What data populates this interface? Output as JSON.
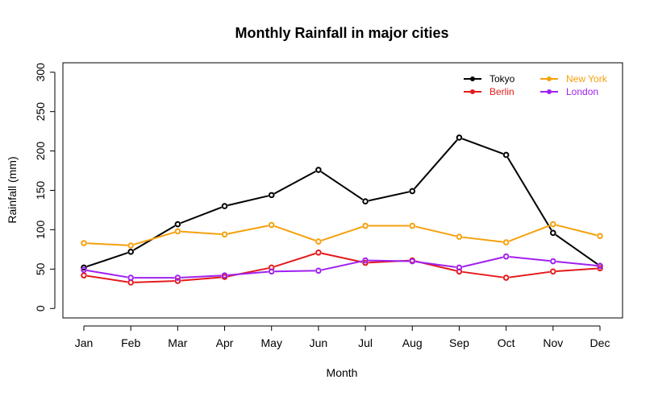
{
  "chart_data": {
    "type": "line",
    "title": "Monthly Rainfall in major cities",
    "xlabel": "Month",
    "ylabel": "Rainfall (mm)",
    "categories": [
      "Jan",
      "Feb",
      "Mar",
      "Apr",
      "May",
      "Jun",
      "Jul",
      "Aug",
      "Sep",
      "Oct",
      "Nov",
      "Dec"
    ],
    "ylim": [
      -12,
      312
    ],
    "yticks": [
      0,
      50,
      100,
      150,
      200,
      250,
      300
    ],
    "grid": false,
    "legend_position": "top-right",
    "series": [
      {
        "name": "Tokyo",
        "color": "#000000",
        "values": [
          52,
          72,
          107,
          130,
          144,
          176,
          136,
          149,
          217,
          195,
          96,
          54
        ]
      },
      {
        "name": "Berlin",
        "color": "#e41a1c",
        "values": [
          42,
          33,
          35,
          40,
          52,
          71,
          58,
          61,
          47,
          39,
          47,
          51
        ]
      },
      {
        "name": "New York",
        "color": "#f5a00d",
        "values": [
          83,
          80,
          98,
          94,
          106,
          85,
          105,
          105,
          91,
          84,
          107,
          92
        ]
      },
      {
        "name": "London",
        "color": "#a020f0",
        "values": [
          49,
          39,
          39,
          42,
          47,
          48,
          61,
          60,
          52,
          66,
          60,
          54
        ]
      }
    ],
    "legend_order": [
      "Tokyo",
      "New York",
      "Berlin",
      "London"
    ]
  }
}
